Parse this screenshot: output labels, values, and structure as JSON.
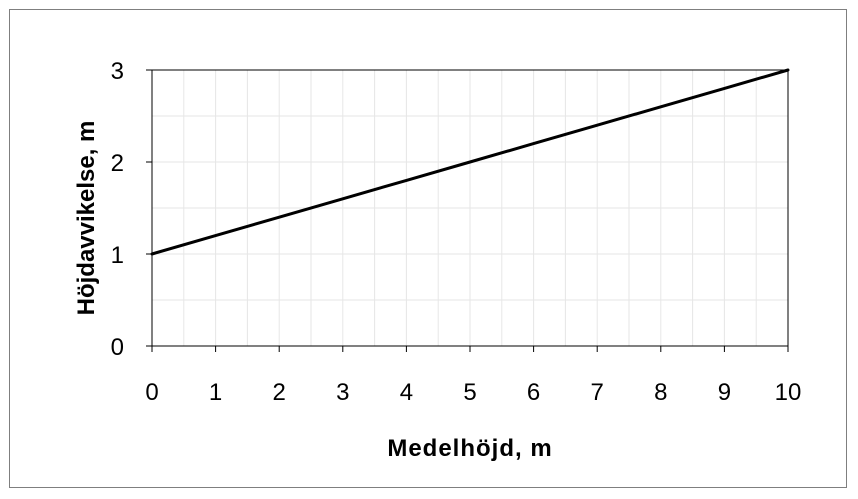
{
  "chart_data": {
    "type": "line",
    "xlabel": "Medelhöjd, m",
    "ylabel": "Höjdavvikelse, m",
    "xlim": [
      0,
      10
    ],
    "ylim": [
      0,
      3
    ],
    "x_ticks": [
      "0",
      "1",
      "2",
      "3",
      "4",
      "5",
      "6",
      "7",
      "8",
      "9",
      "10"
    ],
    "y_ticks": [
      "0",
      "1",
      "2",
      "3"
    ],
    "grid": true,
    "legend": "none",
    "colors": {
      "line": "#000000",
      "grid": "#e6e6e6",
      "frame": "#7f7f7f"
    },
    "series": [
      {
        "x": [
          0,
          1,
          2,
          3,
          4,
          5,
          6,
          7,
          8,
          9,
          10
        ],
        "y": [
          1.0,
          1.2,
          1.4,
          1.6,
          1.8,
          2.0,
          2.2,
          2.4,
          2.6,
          2.8,
          3.0
        ]
      }
    ]
  }
}
